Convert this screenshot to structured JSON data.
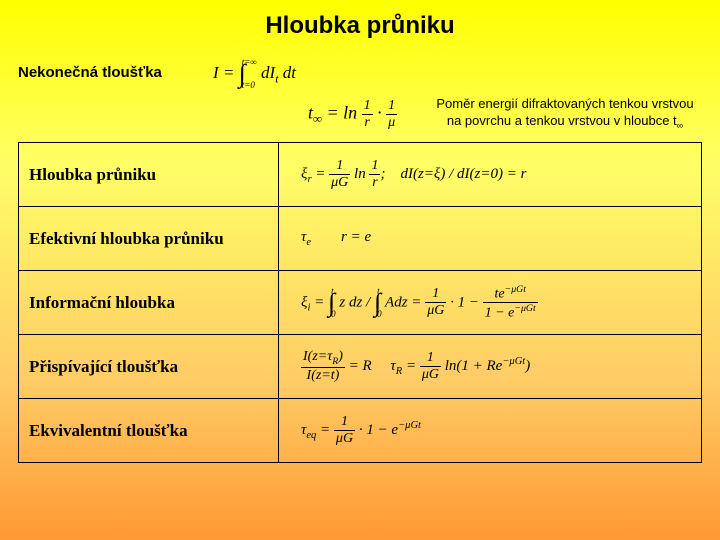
{
  "title": "Hloubka průniku",
  "subtitle": "Nekonečná tloušťka",
  "formula_I": "I = ∫ dI_t dt   (t=0 → t=∞)",
  "formula_tinf": "t_∞ = ln (1/r · 1/μ)",
  "ratio_line1": "Poměr energií difraktovaných tenkou vrstvou",
  "ratio_line2": "na povrchu a tenkou vrstvou v hloubce t_∞",
  "rows": [
    {
      "label": "Hloubka průniku",
      "formula": "ξ_r = (1/μG) ln(1/r);   dI(z=ξ) / dI(z=0) = r"
    },
    {
      "label": "Efektivní hloubka průniku",
      "formula": "τ_e        r = e"
    },
    {
      "label": "Informační hloubka",
      "formula": "ξ_i = ∫ z dz / ∫ A dz = (1/μG) · (1 − t e^{−μGt}) / (1 − e^{−μGt})"
    },
    {
      "label": "Přispívající tloušťka",
      "formula": "I(z=τ_R)/I(z=t) = R     τ_R = (1/μG) ln(1 + R e^{−μGt})"
    },
    {
      "label": "Ekvivalentní tloušťka",
      "formula": "τ_eq = (1/μG) · (1 − e^{−μGt})"
    }
  ],
  "colors": {
    "text": "#000000",
    "border": "#000000",
    "bg_top": "#ffff00",
    "bg_bottom": "#ff9933"
  },
  "fonts": {
    "title_size": 24,
    "label_size": 17,
    "formula_size": 15
  }
}
